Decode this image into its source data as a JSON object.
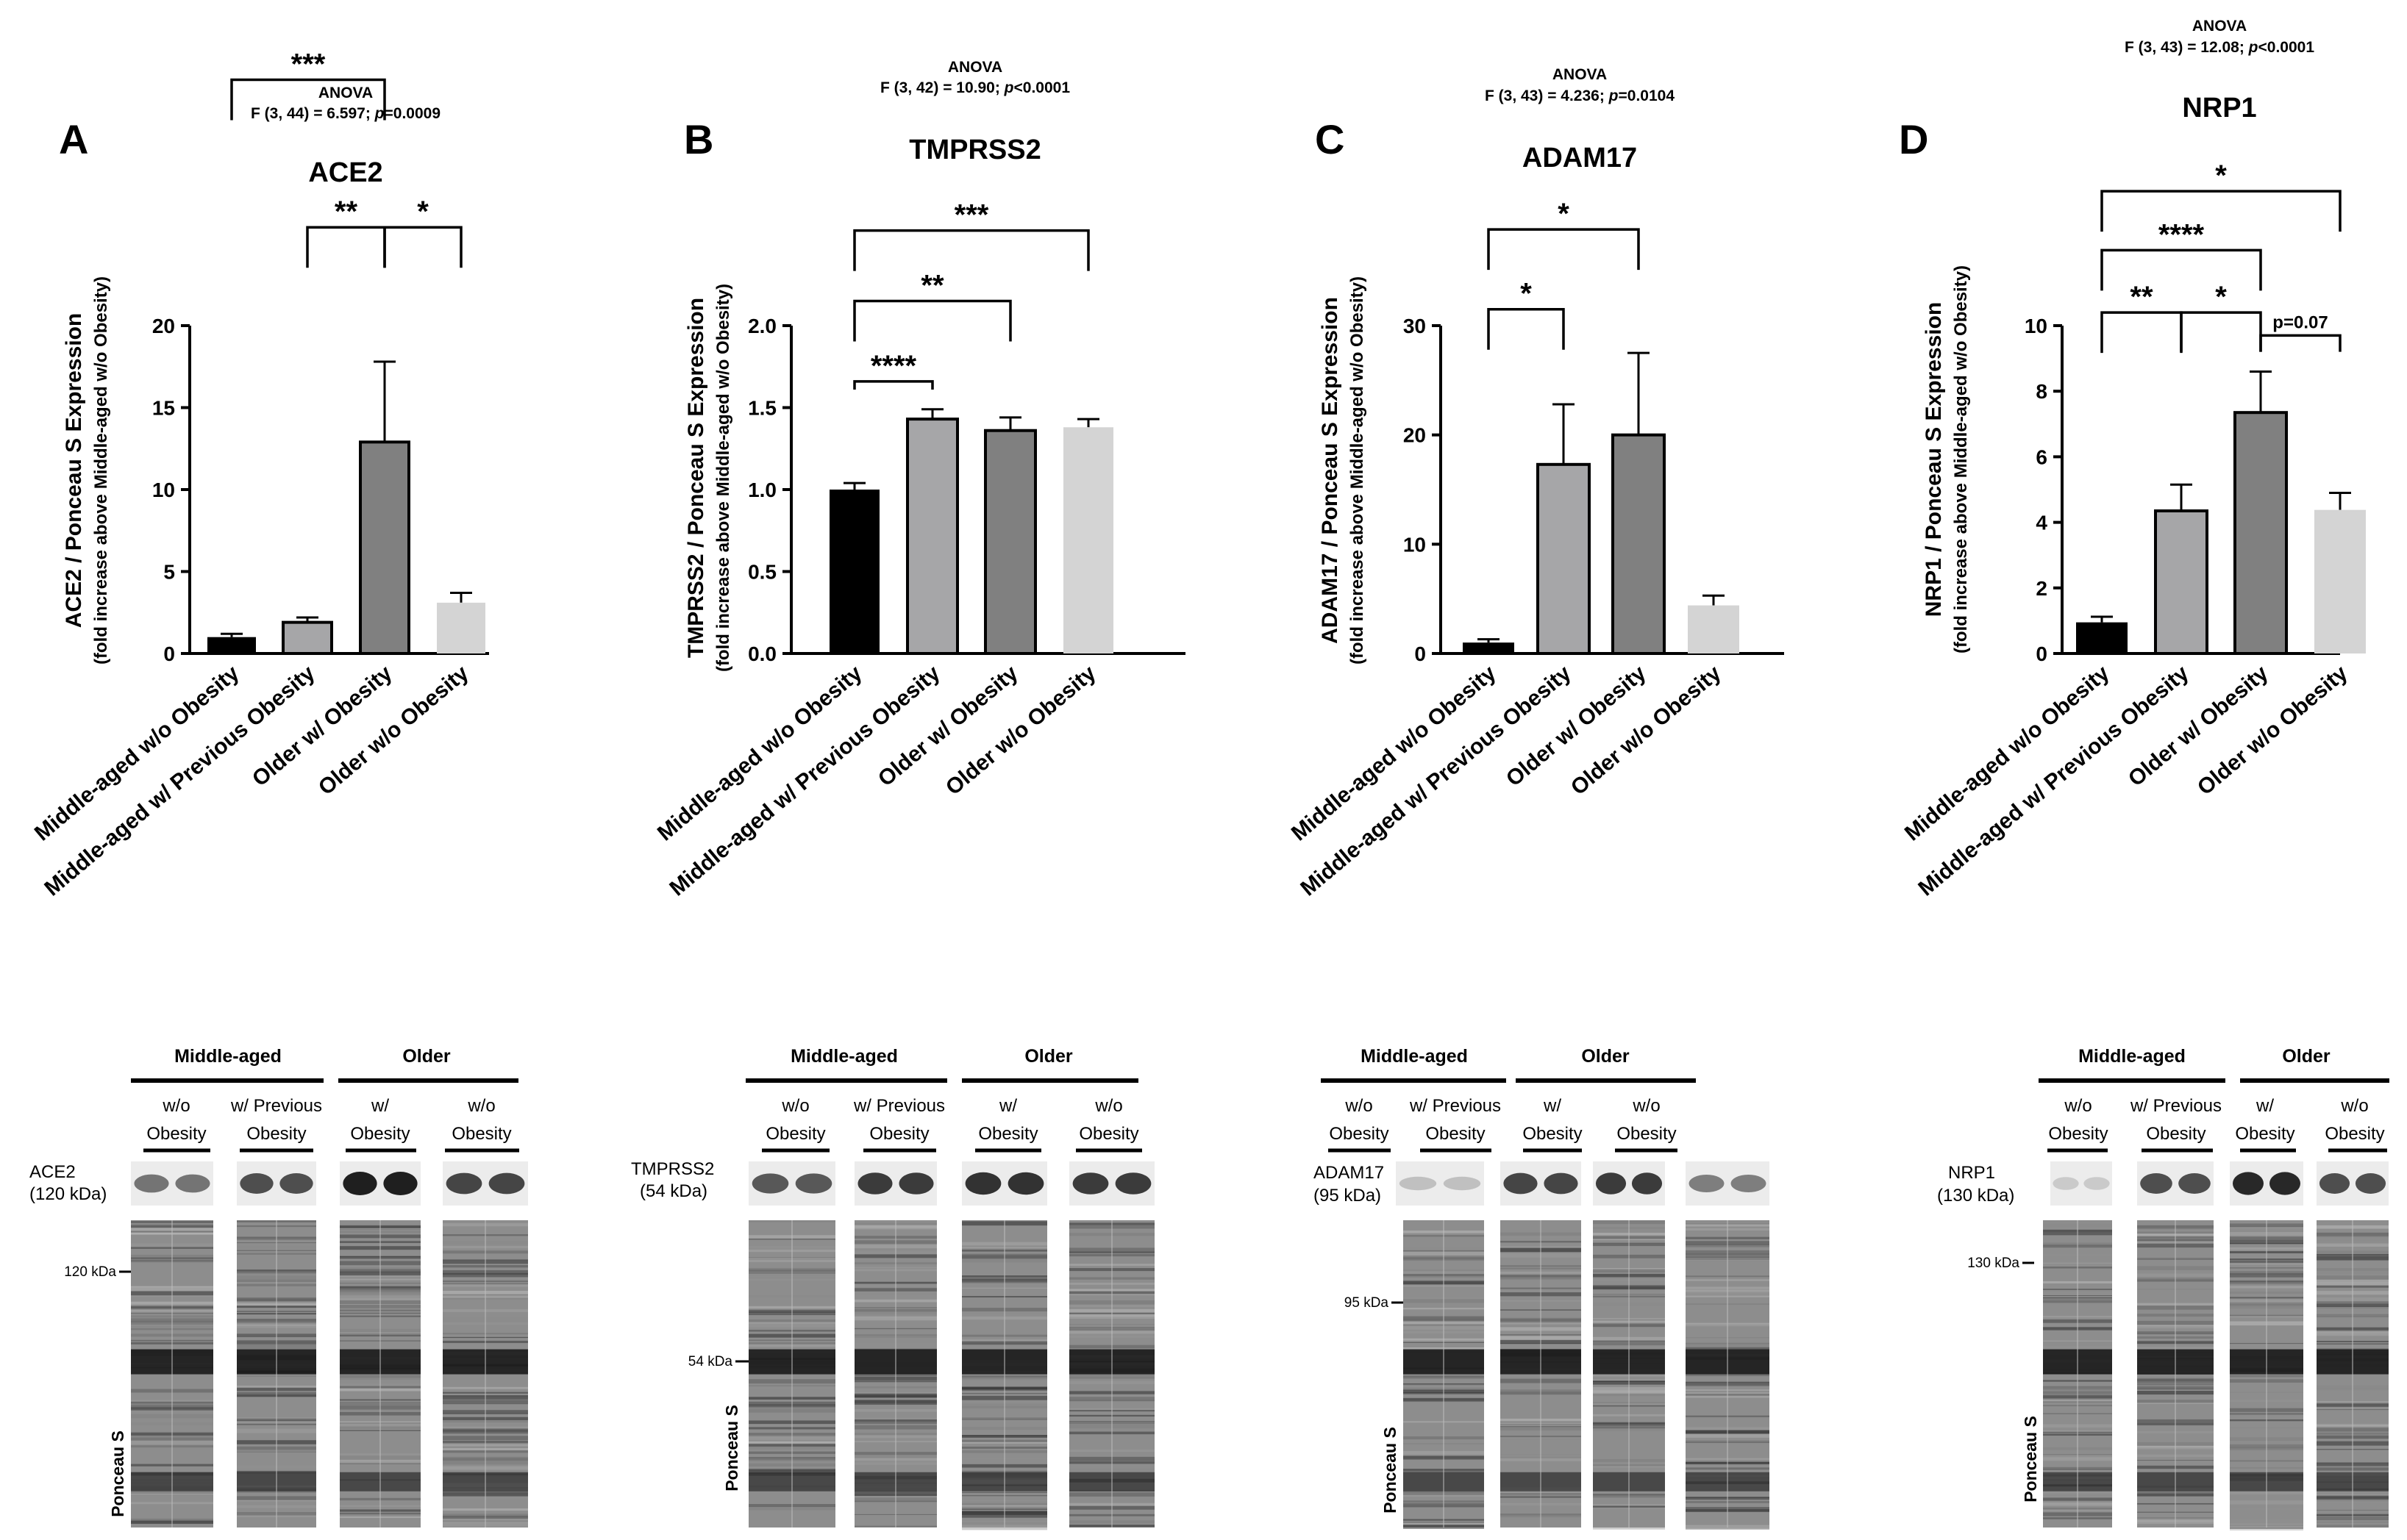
{
  "chart_data": [
    {
      "type": "bar",
      "panel_letter": "A",
      "anova_title": "ANOVA",
      "anova_prefix": "F (3, 44) = 6.597; ",
      "anova_p": "p",
      "anova_suffix": "=0.0009",
      "title": "ACE2",
      "ylabel": "ACE2 / Ponceau S Expression",
      "ylabel2": "(fold increase above Middle-aged w/o Obesity)",
      "categories": [
        "Middle-aged w/o Obesity",
        "Middle-aged w/ Previous Obesity",
        "Older w/ Obesity",
        "Older w/o Obesity"
      ],
      "values": [
        1.0,
        1.9,
        12.9,
        3.1
      ],
      "errors": [
        0.2,
        0.3,
        4.9,
        0.6
      ],
      "colors": [
        "#000000",
        "#a6a6a8",
        "#808080",
        "#d4d4d4"
      ],
      "outlined": [
        false,
        true,
        true,
        false
      ],
      "ylim": [
        0,
        20
      ],
      "yticks": [
        0,
        5,
        10,
        15,
        20
      ],
      "yticklabels": [
        "0",
        "5",
        "10",
        "15",
        "20"
      ],
      "comparisons": [
        {
          "from": 0,
          "to": 2,
          "y": 35.0,
          "label": "***"
        },
        {
          "from": 1,
          "to": 2,
          "y": 26.0,
          "label": "**"
        },
        {
          "from": 2,
          "to": 3,
          "y": 26.0,
          "label": "*"
        }
      ],
      "blot": {
        "group_labels": [
          "Middle-aged",
          "Older"
        ],
        "lane_labels": [
          [
            "w/o",
            "Obesity"
          ],
          [
            "w/ Previous",
            "Obesity"
          ],
          [
            "w/",
            "Obesity"
          ],
          [
            "w/o",
            "Obesity"
          ]
        ],
        "protein": "ACE2",
        "kda": "(120 kDa)",
        "marker": "120 kDa",
        "stain": "Ponceau S",
        "band_intensity": [
          0.55,
          0.75,
          1.0,
          0.8
        ]
      }
    },
    {
      "type": "bar",
      "panel_letter": "B",
      "anova_title": "ANOVA",
      "anova_prefix": "F (3, 42) = 10.90; ",
      "anova_p": "p",
      "anova_suffix": "<0.0001",
      "title": "TMPRSS2",
      "ylabel": "TMPRSS2 / Ponceau S Expression",
      "ylabel2": "(fold increase above Middle-aged w/o Obesity)",
      "categories": [
        "Middle-aged w/o Obesity",
        "Middle-aged w/ Previous Obesity",
        "Older w/ Obesity",
        "Older w/o Obesity"
      ],
      "values": [
        1.0,
        1.43,
        1.36,
        1.38
      ],
      "errors": [
        0.04,
        0.06,
        0.08,
        0.05
      ],
      "colors": [
        "#000000",
        "#a6a6a8",
        "#808080",
        "#d4d4d4"
      ],
      "outlined": [
        false,
        true,
        true,
        false
      ],
      "ylim": [
        0,
        2.0
      ],
      "yticks": [
        0,
        0.5,
        1.0,
        1.5,
        2.0
      ],
      "yticklabels": [
        "0.0",
        "0.5",
        "1.0",
        "1.5",
        "2.0"
      ],
      "comparisons": [
        {
          "from": 0,
          "to": 1,
          "y": 1.66,
          "label": "****"
        },
        {
          "from": 0,
          "to": 2,
          "y": 2.15,
          "label": "**"
        },
        {
          "from": 0,
          "to": 3,
          "y": 2.58,
          "label": "***"
        }
      ],
      "blot": {
        "group_labels": [
          "Middle-aged",
          "Older"
        ],
        "lane_labels": [
          [
            "w/o",
            "Obesity"
          ],
          [
            "w/ Previous",
            "Obesity"
          ],
          [
            "w/",
            "Obesity"
          ],
          [
            "w/o",
            "Obesity"
          ]
        ],
        "protein": "TMPRSS2",
        "kda": "(54 kDa)",
        "marker": "54 kDa",
        "stain": "Ponceau S",
        "band_intensity": [
          0.7,
          0.85,
          0.9,
          0.85
        ]
      }
    },
    {
      "type": "bar",
      "panel_letter": "C",
      "anova_title": "ANOVA",
      "anova_prefix": "F (3, 43) = 4.236; ",
      "anova_p": "p",
      "anova_suffix": "=0.0104",
      "title": "ADAM17",
      "ylabel": "ADAM17 / Ponceau S Expression",
      "ylabel2": "(fold increase above Middle-aged w/o Obesity)",
      "categories": [
        "Middle-aged w/o Obesity",
        "Middle-aged w/ Previous Obesity",
        "Older w/ Obesity",
        "Older w/o Obesity"
      ],
      "values": [
        1.0,
        17.3,
        20.0,
        4.4
      ],
      "errors": [
        0.3,
        5.5,
        7.5,
        0.9
      ],
      "colors": [
        "#000000",
        "#a6a6a8",
        "#808080",
        "#d4d4d4"
      ],
      "outlined": [
        false,
        true,
        true,
        false
      ],
      "ylim": [
        0,
        30
      ],
      "yticks": [
        0,
        10,
        20,
        30
      ],
      "yticklabels": [
        "0",
        "10",
        "20",
        "30"
      ],
      "comparisons": [
        {
          "from": 0,
          "to": 1,
          "y": 31.5,
          "label": "*"
        },
        {
          "from": 0,
          "to": 2,
          "y": 38.8,
          "label": "*"
        }
      ],
      "blot": {
        "group_labels": [
          "Middle-aged",
          "Older"
        ],
        "lane_labels": [
          [
            "w/o",
            "Obesity"
          ],
          [
            "w/ Previous",
            "Obesity"
          ],
          [
            "w/",
            "Obesity"
          ],
          [
            "w/o",
            "Obesity"
          ]
        ],
        "protein": "ADAM17",
        "kda": "(95 kDa)",
        "marker": "95 kDa",
        "stain": "Ponceau S",
        "band_intensity": [
          0.15,
          0.8,
          0.85,
          0.5
        ]
      }
    },
    {
      "type": "bar",
      "panel_letter": "D",
      "anova_title": "ANOVA",
      "anova_prefix": "F (3, 43) = 12.08; ",
      "anova_p": "p",
      "anova_suffix": "<0.0001",
      "title": "NRP1",
      "ylabel": "NRP1 / Ponceau S Expression",
      "ylabel2": "(fold increase above Middle-aged w/o Obesity)",
      "categories": [
        "Middle-aged w/o Obesity",
        "Middle-aged w/ Previous Obesity",
        "Older w/ Obesity",
        "Older w/o Obesity"
      ],
      "values": [
        0.95,
        4.35,
        7.35,
        4.38
      ],
      "errors": [
        0.17,
        0.8,
        1.25,
        0.52
      ],
      "colors": [
        "#000000",
        "#a6a6a8",
        "#808080",
        "#d4d4d4"
      ],
      "outlined": [
        false,
        true,
        true,
        false
      ],
      "ylim": [
        0,
        10
      ],
      "yticks": [
        0,
        2,
        4,
        6,
        8,
        10
      ],
      "yticklabels": [
        "0",
        "2",
        "4",
        "6",
        "8",
        "10"
      ],
      "comparisons": [
        {
          "from": 0,
          "to": 1,
          "y": 10.4,
          "label": "**"
        },
        {
          "from": 1,
          "to": 2,
          "y": 10.4,
          "label": "*"
        },
        {
          "from": 2,
          "to": 3,
          "y": 9.7,
          "label": "p=0.07"
        },
        {
          "from": 0,
          "to": 2,
          "y": 12.3,
          "label": "****"
        },
        {
          "from": 0,
          "to": 3,
          "y": 14.1,
          "label": "*"
        }
      ],
      "blot": {
        "group_labels": [
          "Middle-aged",
          "Older"
        ],
        "lane_labels": [
          [
            "w/o",
            "Obesity"
          ],
          [
            "w/ Previous",
            "Obesity"
          ],
          [
            "w/",
            "Obesity"
          ],
          [
            "w/o",
            "Obesity"
          ]
        ],
        "protein": "NRP1",
        "kda": "(130 kDa)",
        "marker": "130 kDa",
        "stain": "Ponceau S",
        "band_intensity": [
          0.1,
          0.75,
          0.95,
          0.75
        ]
      }
    }
  ]
}
